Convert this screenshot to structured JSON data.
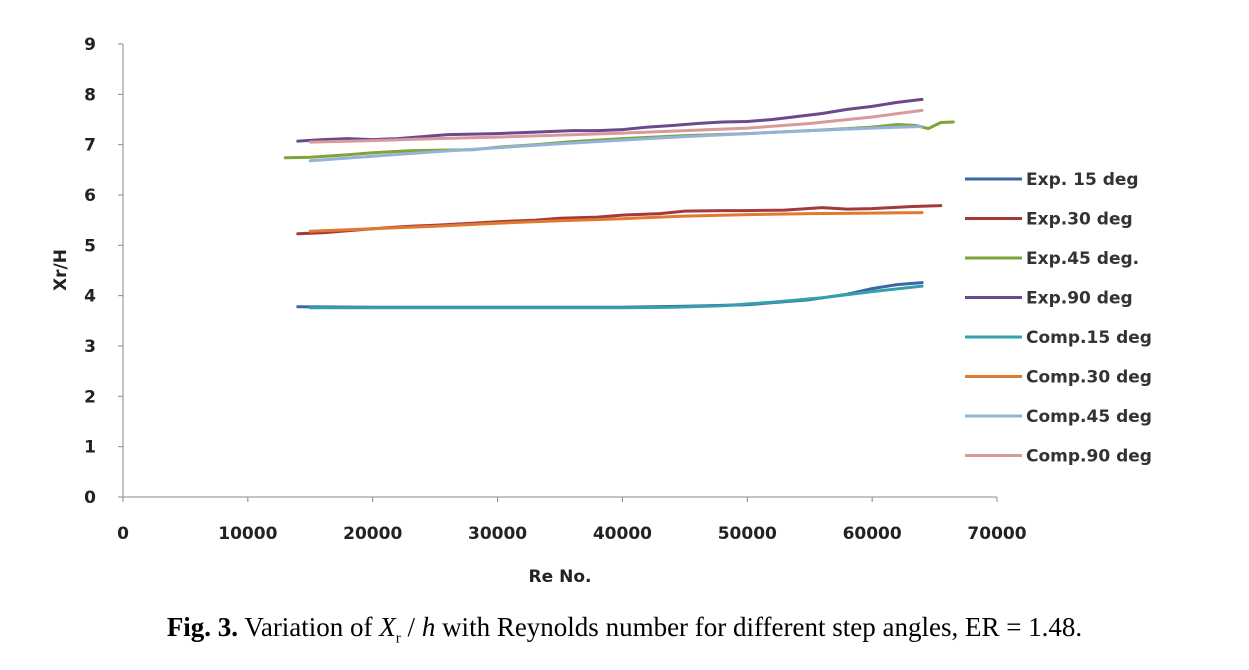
{
  "chart_data": {
    "type": "line",
    "xlabel": "Re No.",
    "ylabel": "Xr/H",
    "xlim": [
      0,
      70000
    ],
    "ylim": [
      0,
      9
    ],
    "xticks": [
      "0",
      "10000",
      "20000",
      "30000",
      "40000",
      "50000",
      "60000",
      "70000"
    ],
    "yticks": [
      "0",
      "1",
      "2",
      "3",
      "4",
      "5",
      "6",
      "7",
      "8",
      "9"
    ],
    "grid": false,
    "legend": "right",
    "series": [
      {
        "name": "Exp. 15 deg",
        "color": "#3a66a6",
        "x": [
          14000,
          20000,
          30000,
          40000,
          45000,
          50000,
          55000,
          58000,
          60000,
          62000,
          64000
        ],
        "y": [
          3.78,
          3.77,
          3.77,
          3.77,
          3.79,
          3.82,
          3.92,
          4.03,
          4.14,
          4.22,
          4.26
        ]
      },
      {
        "name": "Exp.30 deg",
        "color": "#a33a3a",
        "x": [
          14000,
          16000,
          20000,
          23000,
          25000,
          28000,
          30000,
          33000,
          35000,
          38000,
          40000,
          43000,
          45000,
          48000,
          50000,
          53000,
          56000,
          58000,
          60000,
          63000,
          65500
        ],
        "y": [
          5.23,
          5.25,
          5.33,
          5.38,
          5.4,
          5.44,
          5.47,
          5.5,
          5.54,
          5.56,
          5.6,
          5.63,
          5.68,
          5.69,
          5.69,
          5.7,
          5.75,
          5.72,
          5.73,
          5.77,
          5.79
        ]
      },
      {
        "name": "Exp.45 deg.",
        "color": "#7ea33a",
        "x": [
          13000,
          15000,
          18000,
          20000,
          23000,
          25000,
          28000,
          30000,
          33000,
          36000,
          40000,
          45000,
          50000,
          55000,
          58000,
          60000,
          62000,
          63500,
          64500,
          65500,
          66500
        ],
        "y": [
          6.74,
          6.75,
          6.8,
          6.84,
          6.88,
          6.89,
          6.9,
          6.95,
          7.0,
          7.06,
          7.12,
          7.18,
          7.22,
          7.28,
          7.32,
          7.35,
          7.4,
          7.38,
          7.32,
          7.44,
          7.45
        ]
      },
      {
        "name": "Exp.90 deg",
        "color": "#6a4a8c",
        "x": [
          14000,
          16000,
          18000,
          20000,
          22000,
          24000,
          26000,
          28000,
          30000,
          32000,
          34000,
          36000,
          38000,
          40000,
          42000,
          44000,
          46000,
          48000,
          50000,
          52000,
          54000,
          56000,
          58000,
          60000,
          62000,
          64000
        ],
        "y": [
          7.07,
          7.1,
          7.12,
          7.1,
          7.12,
          7.16,
          7.2,
          7.21,
          7.22,
          7.24,
          7.26,
          7.28,
          7.28,
          7.3,
          7.35,
          7.38,
          7.42,
          7.45,
          7.46,
          7.5,
          7.56,
          7.62,
          7.7,
          7.76,
          7.84,
          7.9
        ]
      },
      {
        "name": "Comp.15 deg",
        "color": "#33a0ab",
        "x": [
          15000,
          20000,
          30000,
          40000,
          44000,
          48000,
          52000,
          56000,
          60000,
          64000
        ],
        "y": [
          3.76,
          3.76,
          3.76,
          3.76,
          3.77,
          3.8,
          3.87,
          3.96,
          4.08,
          4.19
        ]
      },
      {
        "name": "Comp.30 deg",
        "color": "#e07a30",
        "x": [
          15000,
          20000,
          25000,
          30000,
          35000,
          40000,
          45000,
          50000,
          55000,
          60000,
          64000
        ],
        "y": [
          5.28,
          5.33,
          5.38,
          5.44,
          5.49,
          5.53,
          5.58,
          5.61,
          5.63,
          5.64,
          5.65
        ]
      },
      {
        "name": "Comp.45 deg",
        "color": "#95b2d8",
        "x": [
          15000,
          20000,
          25000,
          30000,
          35000,
          40000,
          45000,
          50000,
          55000,
          60000,
          64000
        ],
        "y": [
          6.68,
          6.77,
          6.86,
          6.94,
          7.02,
          7.09,
          7.16,
          7.22,
          7.28,
          7.33,
          7.36
        ]
      },
      {
        "name": "Comp.90 deg",
        "color": "#d89a9a",
        "x": [
          15000,
          20000,
          25000,
          30000,
          35000,
          40000,
          45000,
          50000,
          55000,
          60000,
          64000
        ],
        "y": [
          7.05,
          7.08,
          7.12,
          7.15,
          7.19,
          7.23,
          7.28,
          7.33,
          7.42,
          7.55,
          7.68
        ]
      }
    ]
  },
  "caption": {
    "fig_label": "Fig. 3.",
    "text_before": " Variation of ",
    "x_symbol": "X",
    "x_sub": "r",
    "slash": " / ",
    "h_symbol": "h",
    "text_after": " with Reynolds number for different step angles, ER = 1.48."
  }
}
